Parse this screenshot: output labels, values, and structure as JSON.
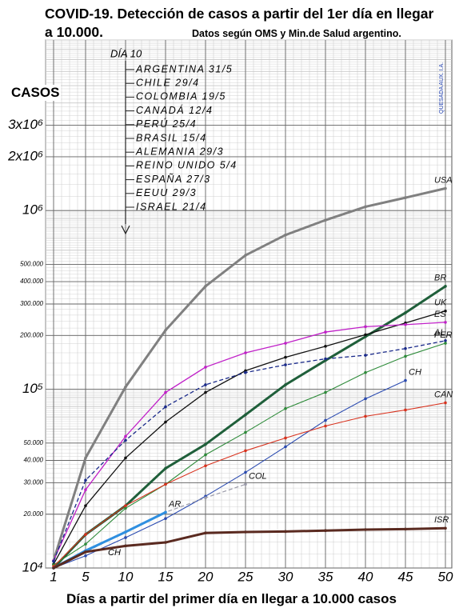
{
  "chart_data": {
    "type": "line",
    "title": "COVID-19. Detección de casos a partir del 1er día en llegar a 10.000.",
    "subtitle": "Datos según OMS y Min.de Salud argentino.",
    "y_label": "CASOS",
    "x_label": "Días a partir del primer día en llegar a 10.000 casos",
    "log_y": true,
    "grid": true,
    "x": [
      1,
      5,
      10,
      15,
      20,
      25,
      30,
      35,
      40,
      45,
      50
    ],
    "xlim": [
      0,
      50.8
    ],
    "ylim": [
      10000,
      9000000
    ],
    "xticks": [
      1,
      5,
      10,
      15,
      20,
      25,
      30,
      35,
      40,
      45,
      50
    ],
    "yticks": [
      {
        "value": 10000,
        "label": "10⁴"
      },
      {
        "value": 20000,
        "label": "20.000"
      },
      {
        "value": 30000,
        "label": "30.000"
      },
      {
        "value": 40000,
        "label": "40.000"
      },
      {
        "value": 50000,
        "label": "50.000"
      },
      {
        "value": 100000,
        "label": "10⁵"
      },
      {
        "value": 200000,
        "label": "200.000"
      },
      {
        "value": 300000,
        "label": "300.000"
      },
      {
        "value": 400000,
        "label": "400.000"
      },
      {
        "value": 500000,
        "label": "500.000"
      },
      {
        "value": 1000000,
        "label": "10⁶"
      },
      {
        "value": 2000000,
        "label": "2x10⁶"
      },
      {
        "value": 3000000,
        "label": "3x10⁶"
      }
    ],
    "series": [
      {
        "name": "USA",
        "color": "#808080",
        "width": 3,
        "dashed": false,
        "values": [
          11000,
          41300,
          103000,
          214000,
          377000,
          562000,
          730000,
          884000,
          1050000,
          1180000,
          1330000
        ]
      },
      {
        "name": "BR",
        "color": "#1f5f3a",
        "width": 3,
        "dashed": false,
        "values": [
          10000,
          15400,
          22300,
          36100,
          49200,
          72000,
          106000,
          145000,
          197000,
          268000,
          377000
        ]
      },
      {
        "name": "UK",
        "color": "#111111",
        "width": 1.3,
        "dashed": false,
        "values": [
          10500,
          22300,
          41300,
          65600,
          96000,
          127000,
          151000,
          174000,
          202000,
          235000,
          274000
        ]
      },
      {
        "name": "ES",
        "color": "#c020c8",
        "width": 1.3,
        "dashed": false,
        "values": [
          11000,
          27400,
          54500,
          96000,
          133000,
          160000,
          181000,
          209000,
          224000,
          230000,
          237000
        ]
      },
      {
        "name": "AL",
        "color": "#1a2a8a",
        "width": 1.3,
        "dashed": true,
        "values": [
          10900,
          31000,
          51800,
          79800,
          106000,
          124000,
          137000,
          148000,
          155000,
          169000,
          187000
        ]
      },
      {
        "name": "PER",
        "color": "#2e8b3a",
        "width": 1.1,
        "dashed": false,
        "values": [
          10400,
          13600,
          21600,
          29400,
          43000,
          57400,
          78000,
          96000,
          124000,
          153000,
          181000
        ]
      },
      {
        "name": "CH",
        "color": "#2b4bb0",
        "width": 1.1,
        "dashed": false,
        "values": [
          10000,
          11700,
          14800,
          18900,
          25200,
          34300,
          47700,
          67000,
          88500,
          112000,
          null
        ]
      },
      {
        "name": "CAN",
        "color": "#d8321e",
        "width": 1.1,
        "dashed": false,
        "values": [
          10200,
          15400,
          22300,
          29400,
          37300,
          45300,
          53400,
          62300,
          70600,
          76600,
          84000
        ]
      },
      {
        "name": "COL",
        "color": "#9a9aa8",
        "width": 1.2,
        "dashed": true,
        "values": [
          10000,
          12300,
          15900,
          20500,
          24700,
          29400,
          null,
          null,
          null,
          null,
          null
        ]
      },
      {
        "name": "AR",
        "color": "#2f8fe0",
        "width": 3,
        "dashed": false,
        "values": [
          10000,
          12500,
          15900,
          20500,
          null,
          null,
          null,
          null,
          null,
          null,
          null
        ]
      },
      {
        "name": "ISR",
        "color": "#5a2a20",
        "width": 3,
        "dashed": false,
        "values": [
          10000,
          12300,
          13300,
          13900,
          15700,
          15900,
          16000,
          16200,
          16400,
          16500,
          16700
        ]
      }
    ],
    "annotations": [
      "CH"
    ],
    "notes_header": "DÍA 10",
    "notes": [
      "ARGENTINA 31/5",
      "CHILE 29/4",
      "COLOMBIA 19/5",
      "CANADÁ 12/4",
      "PERÚ 25/4",
      "BRASIL 15/4",
      "ALEMANIA 29/3",
      "REINO UNIDO 5/4",
      "ESPAÑA 27/3",
      "EEUU 29/3",
      "ISRAEL 21/4"
    ],
    "signature": "QUESADA AUX. I.A."
  }
}
